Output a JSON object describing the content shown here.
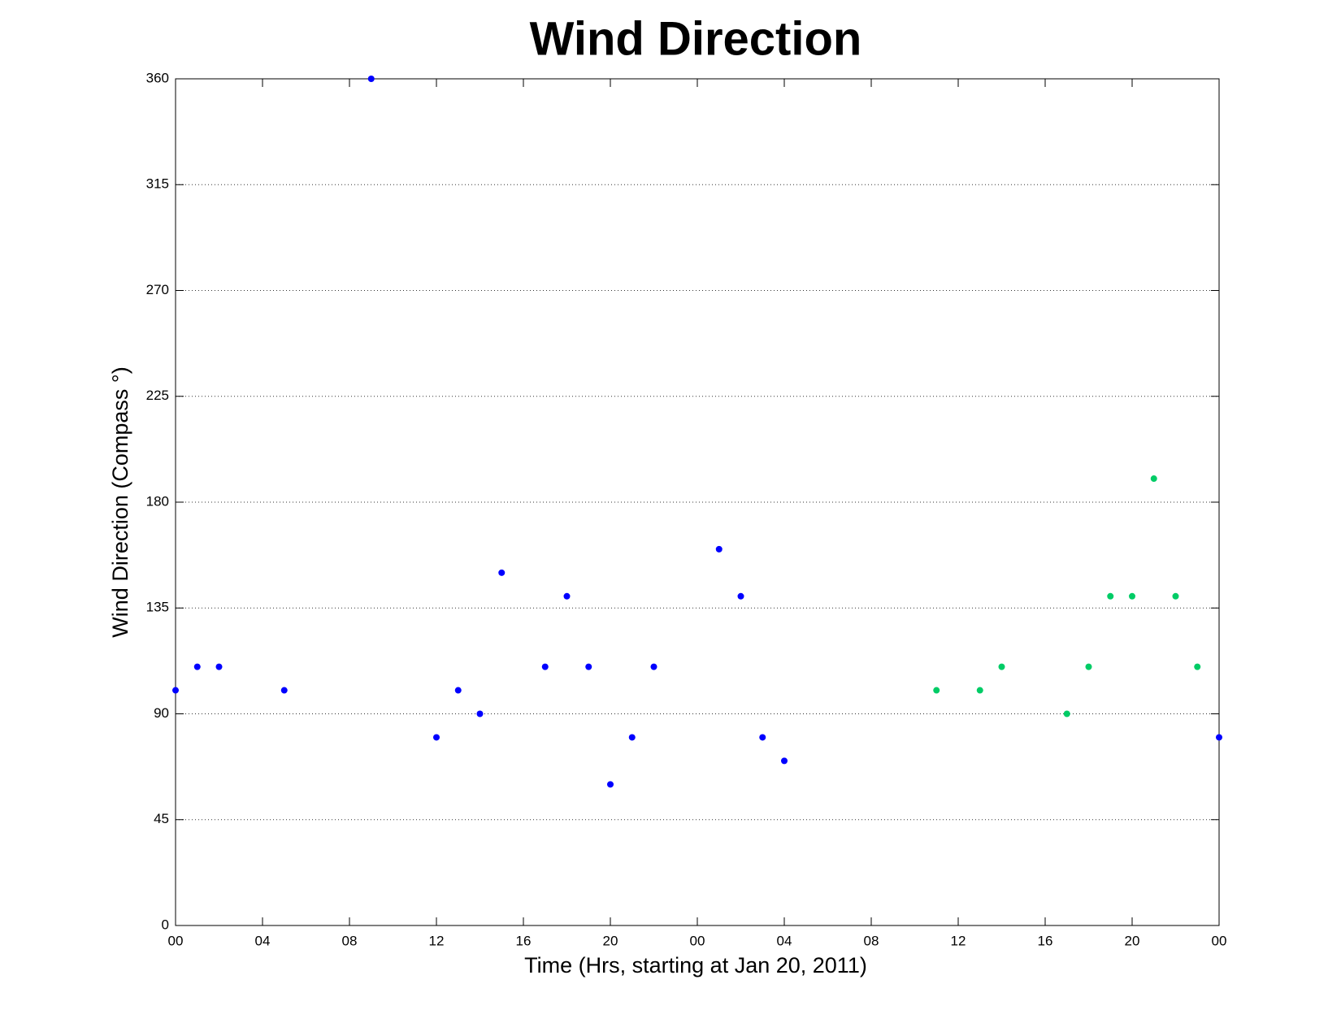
{
  "chart_data": {
    "type": "scatter",
    "title": "Wind Direction",
    "x_label": "Time (Hrs, starting at Jan 20, 2011)",
    "y_label": "Wind Direction (Compass °)",
    "xlim": [
      0,
      48
    ],
    "xticks": [
      {
        "value": 0,
        "label": "00"
      },
      {
        "value": 4,
        "label": "04"
      },
      {
        "value": 8,
        "label": "08"
      },
      {
        "value": 12,
        "label": "12"
      },
      {
        "value": 16,
        "label": "16"
      },
      {
        "value": 20,
        "label": "20"
      },
      {
        "value": 24,
        "label": "00"
      },
      {
        "value": 28,
        "label": "04"
      },
      {
        "value": 32,
        "label": "08"
      },
      {
        "value": 36,
        "label": "12"
      },
      {
        "value": 40,
        "label": "16"
      },
      {
        "value": 44,
        "label": "20"
      },
      {
        "value": 48,
        "label": "00"
      }
    ],
    "ylim": [
      0,
      360
    ],
    "yticks": [
      0,
      45,
      90,
      135,
      180,
      225,
      270,
      315,
      360
    ],
    "grid": true,
    "series": [
      {
        "color": "#0000ff",
        "x": [
          0,
          1,
          2,
          5,
          9,
          12,
          13,
          14,
          15,
          17,
          18,
          19,
          20,
          21,
          22,
          25,
          26,
          27,
          28,
          48
        ],
        "values": [
          100,
          110,
          110,
          100,
          360,
          80,
          100,
          90,
          150,
          110,
          140,
          110,
          60,
          80,
          110,
          160,
          140,
          80,
          70,
          80
        ]
      },
      {
        "color": "#00cc66",
        "x": [
          35,
          37,
          38,
          41,
          42,
          43,
          44,
          45,
          46,
          47
        ],
        "values": [
          100,
          100,
          110,
          90,
          110,
          140,
          140,
          190,
          140,
          110
        ]
      }
    ]
  }
}
